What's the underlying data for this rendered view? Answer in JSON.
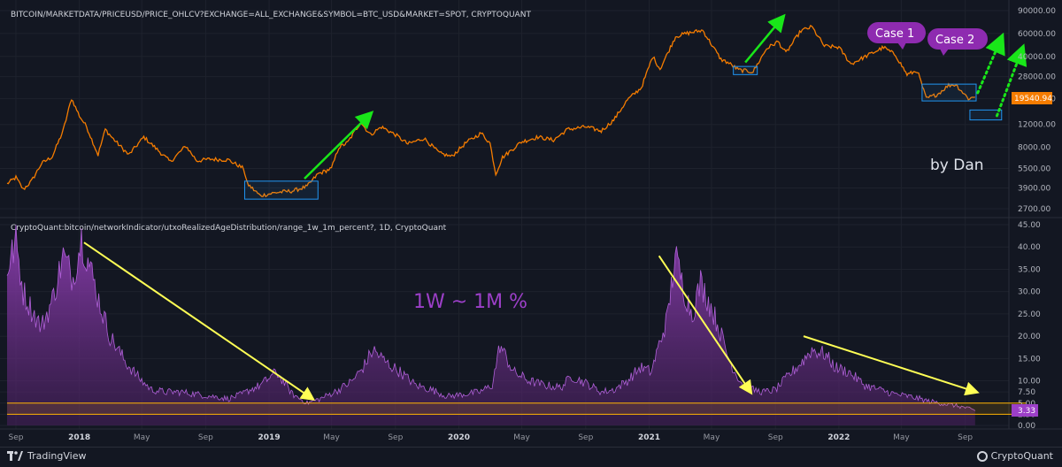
{
  "chart_data": [
    {
      "type": "line",
      "title": "BITCOIN/MARKETDATA/PRICEUSD/PRICE_OHLCV?EXCHANGE=ALL_EXCHANGE&SYMBOL=BTC_USD&MARKET=SPOT, CRYPTOQUANT",
      "scale": "log",
      "yticks": [
        2700,
        3900,
        5500,
        8000,
        12000,
        19000,
        28000,
        40000,
        60000,
        90000
      ],
      "ytick_labels": [
        "2700.00",
        "3900.00",
        "5500.00",
        "8000.00",
        "12000.00",
        "19000.00",
        "28000.00",
        "40000.00",
        "60000.00",
        "90000.00"
      ],
      "last_value_label": "19540.94",
      "line_color": "#f57c00",
      "series": [
        {
          "x": [
            "2017-08-15",
            "2017-09-01",
            "2017-09-15",
            "2017-10-01",
            "2017-10-20",
            "2017-11-10",
            "2017-12-01",
            "2017-12-17",
            "2018-01-01",
            "2018-01-15",
            "2018-02-06",
            "2018-02-20",
            "2018-03-05",
            "2018-04-06",
            "2018-05-05",
            "2018-06-25",
            "2018-07-25",
            "2018-08-15",
            "2018-09-10",
            "2018-10-15",
            "2018-11-13",
            "2018-11-20",
            "2018-12-15",
            "2019-01-15",
            "2019-02-15",
            "2019-03-15",
            "2019-04-05",
            "2019-05-01",
            "2019-05-15",
            "2019-06-01",
            "2019-06-26",
            "2019-07-15",
            "2019-08-05",
            "2019-09-01",
            "2019-09-25",
            "2019-10-26",
            "2019-11-25",
            "2019-12-18",
            "2020-01-15",
            "2020-02-13",
            "2020-03-01",
            "2020-03-12",
            "2020-03-25",
            "2020-04-30",
            "2020-06-01",
            "2020-07-01",
            "2020-07-28",
            "2020-09-01",
            "2020-10-01",
            "2020-10-25",
            "2020-11-20",
            "2020-12-17",
            "2021-01-08",
            "2021-01-22",
            "2021-02-21",
            "2021-03-13",
            "2021-04-14",
            "2021-05-19",
            "2021-06-01",
            "2021-06-22",
            "2021-07-20",
            "2021-08-15",
            "2021-09-06",
            "2021-09-21",
            "2021-10-20",
            "2021-11-10",
            "2021-12-04",
            "2022-01-01",
            "2022-01-24",
            "2022-03-28",
            "2022-04-20",
            "2022-05-12",
            "2022-06-01",
            "2022-06-18",
            "2022-07-10",
            "2022-07-31",
            "2022-08-14",
            "2022-09-07",
            "2022-09-20"
          ],
          "values": [
            4200,
            4700,
            3800,
            4400,
            6000,
            6800,
            10800,
            19000,
            14000,
            11500,
            7000,
            11000,
            9500,
            7000,
            9600,
            6200,
            8200,
            6300,
            6500,
            6400,
            5500,
            4200,
            3400,
            3600,
            3700,
            4000,
            5000,
            5500,
            8000,
            8700,
            12500,
            10000,
            11500,
            10000,
            8500,
            9400,
            7200,
            6800,
            8700,
            10300,
            8600,
            5000,
            6700,
            8800,
            9600,
            9100,
            11000,
            11500,
            10700,
            13000,
            18500,
            23000,
            40000,
            32000,
            57000,
            60000,
            63500,
            38000,
            36000,
            31500,
            30500,
            46000,
            52000,
            42500,
            63000,
            67500,
            48000,
            47000,
            35000,
            47000,
            41000,
            29000,
            31000,
            19000,
            20500,
            24000,
            24300,
            19000,
            19500
          ]
        }
      ]
    },
    {
      "type": "area",
      "title": "CryptoQuant:bitcoin/networkIndicator/utxoRealizedAgeDistribution/range_1w_1m_percent?, 1D, CryptoQuant",
      "yticks": [
        0,
        2.5,
        5,
        7.5,
        10,
        15,
        20,
        25,
        30,
        35,
        40,
        45
      ],
      "ytick_labels": [
        "0.00",
        "2.50",
        "5.00",
        "7.50",
        "10.00",
        "15.00",
        "20.00",
        "25.00",
        "30.00",
        "35.00",
        "40.00",
        "45.00"
      ],
      "last_value_label": "3.33",
      "annotation": "1W ~ 1M %",
      "fill_color": "#7b2fa0",
      "series": [
        {
          "x": [
            "2017-08-15",
            "2017-09-01",
            "2017-09-15",
            "2017-10-01",
            "2017-10-20",
            "2017-11-10",
            "2017-12-01",
            "2017-12-20",
            "2018-01-05",
            "2018-01-20",
            "2018-02-10",
            "2018-03-01",
            "2018-04-01",
            "2018-05-01",
            "2018-05-20",
            "2018-06-15",
            "2018-07-15",
            "2018-08-15",
            "2018-09-15",
            "2018-10-15",
            "2018-11-10",
            "2018-11-25",
            "2018-12-15",
            "2019-01-15",
            "2019-02-15",
            "2019-03-15",
            "2019-04-10",
            "2019-05-15",
            "2019-06-10",
            "2019-07-01",
            "2019-07-20",
            "2019-08-15",
            "2019-09-10",
            "2019-10-10",
            "2019-11-10",
            "2019-12-10",
            "2020-01-10",
            "2020-02-10",
            "2020-03-05",
            "2020-03-20",
            "2020-04-15",
            "2020-05-15",
            "2020-06-15",
            "2020-07-15",
            "2020-08-05",
            "2020-09-01",
            "2020-10-01",
            "2020-10-25",
            "2020-11-20",
            "2020-12-15",
            "2021-01-05",
            "2021-01-25",
            "2021-02-05",
            "2021-02-20",
            "2021-03-10",
            "2021-03-25",
            "2021-04-10",
            "2021-04-25",
            "2021-05-15",
            "2021-05-31",
            "2021-06-15",
            "2021-07-01",
            "2021-07-20",
            "2021-08-10",
            "2021-09-01",
            "2021-09-25",
            "2021-10-20",
            "2021-11-10",
            "2021-12-05",
            "2021-12-25",
            "2022-01-20",
            "2022-02-20",
            "2022-03-20",
            "2022-04-20",
            "2022-05-15",
            "2022-06-05",
            "2022-06-20",
            "2022-07-15",
            "2022-08-10",
            "2022-09-01",
            "2022-09-20"
          ],
          "values": [
            35,
            41,
            30,
            26,
            22,
            28,
            38,
            33,
            42,
            36,
            27,
            20,
            14,
            10,
            8,
            7.5,
            7.5,
            7,
            6.5,
            6,
            7,
            8,
            9,
            12,
            7,
            5,
            6,
            8,
            10,
            13,
            17,
            14,
            12,
            9,
            8,
            6.5,
            7,
            7.5,
            9,
            18,
            12,
            10,
            9,
            8.5,
            11,
            9.5,
            7.5,
            8,
            10,
            13,
            12,
            20,
            24,
            38,
            30,
            25,
            32,
            28,
            22,
            16,
            12,
            9,
            8,
            7.5,
            8,
            11,
            14,
            17,
            16,
            13,
            12,
            9,
            8,
            7,
            6.5,
            6,
            5.5,
            5,
            4.5,
            4,
            3.3
          ]
        }
      ],
      "bands": [
        [
          2.5,
          5.0
        ]
      ]
    }
  ],
  "annotations": {
    "case1": "Case 1",
    "case2": "Case 2",
    "signature": "by Dan"
  },
  "footer": {
    "left": "TradingView",
    "right": "CryptoQuant"
  },
  "time_axis": {
    "ticks": [
      {
        "date": "2017-09-01",
        "label": "Sep",
        "bold": false
      },
      {
        "date": "2018-01-01",
        "label": "2018",
        "bold": true
      },
      {
        "date": "2018-05-01",
        "label": "May",
        "bold": false
      },
      {
        "date": "2018-09-01",
        "label": "Sep",
        "bold": false
      },
      {
        "date": "2019-01-01",
        "label": "2019",
        "bold": true
      },
      {
        "date": "2019-05-01",
        "label": "May",
        "bold": false
      },
      {
        "date": "2019-09-01",
        "label": "Sep",
        "bold": false
      },
      {
        "date": "2020-01-01",
        "label": "2020",
        "bold": true
      },
      {
        "date": "2020-05-01",
        "label": "May",
        "bold": false
      },
      {
        "date": "2020-09-01",
        "label": "Sep",
        "bold": false
      },
      {
        "date": "2021-01-01",
        "label": "2021",
        "bold": true
      },
      {
        "date": "2021-05-01",
        "label": "May",
        "bold": false
      },
      {
        "date": "2021-09-01",
        "label": "Sep",
        "bold": false
      },
      {
        "date": "2022-01-01",
        "label": "2022",
        "bold": true
      },
      {
        "date": "2022-05-01",
        "label": "May",
        "bold": false
      },
      {
        "date": "2022-09-01",
        "label": "Sep",
        "bold": false
      }
    ]
  }
}
